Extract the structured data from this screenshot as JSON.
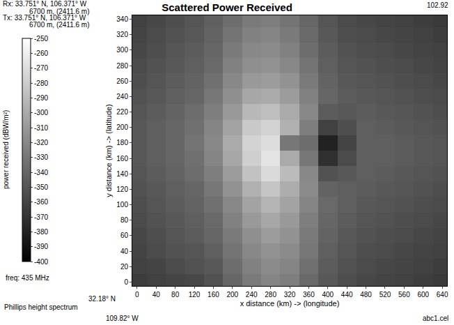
{
  "chart_data": {
    "type": "heatmap",
    "title": "Scattered Power Received",
    "x_label": "x distance (km) -> (longitude)",
    "y_label": "y distance (km) -> (latitude)",
    "annotations": [
      "Rx: 33.751° N, 106.371° W",
      "6700 m, (2411.6 m)",
      "Tx: 33.751° N, 106.371° W",
      "6700 m, (2411.6 m)",
      "102.92",
      "freq: 435 MHz",
      "Phillips height spectrum",
      "32.18° N",
      "109.82° W",
      "abc1.cel"
    ],
    "grid": false,
    "x": [
      0,
      40,
      80,
      120,
      160,
      200,
      240,
      280,
      320,
      360,
      400,
      440,
      480,
      520,
      560,
      600,
      640
    ],
    "y": [
      0,
      20,
      40,
      60,
      80,
      100,
      120,
      140,
      160,
      180,
      200,
      220,
      240,
      260,
      280,
      300,
      320,
      340
    ],
    "z": [
      [
        -365,
        -362,
        -360,
        -358,
        -352,
        -340,
        -328,
        -322,
        -326,
        -338,
        -348,
        -354,
        -358,
        -360,
        -362,
        -364,
        -366
      ],
      [
        -362,
        -360,
        -356,
        -352,
        -348,
        -336,
        -324,
        -318,
        -322,
        -334,
        -346,
        -352,
        -356,
        -358,
        -360,
        -362,
        -364
      ],
      [
        -360,
        -356,
        -352,
        -350,
        -344,
        -332,
        -320,
        -314,
        -318,
        -330,
        -344,
        -350,
        -354,
        -356,
        -358,
        -360,
        -362
      ],
      [
        -358,
        -354,
        -350,
        -346,
        -340,
        -328,
        -316,
        -308,
        -314,
        -328,
        -342,
        -348,
        -352,
        -354,
        -356,
        -358,
        -360
      ],
      [
        -356,
        -352,
        -348,
        -344,
        -338,
        -324,
        -310,
        -302,
        -310,
        -326,
        -340,
        -346,
        -350,
        -352,
        -354,
        -356,
        -358
      ],
      [
        -354,
        -350,
        -346,
        -342,
        -334,
        -320,
        -304,
        -294,
        -304,
        -322,
        -338,
        -344,
        -348,
        -350,
        -352,
        -354,
        -356
      ],
      [
        -352,
        -348,
        -344,
        -340,
        -330,
        -314,
        -296,
        -284,
        -298,
        -318,
        -342,
        -344,
        -346,
        -348,
        -350,
        -352,
        -354
      ],
      [
        -350,
        -346,
        -342,
        -336,
        -326,
        -308,
        -286,
        -272,
        -290,
        -320,
        -352,
        -348,
        -344,
        -346,
        -348,
        -350,
        -352
      ],
      [
        -348,
        -344,
        -340,
        -334,
        -322,
        -302,
        -278,
        -266,
        -300,
        -330,
        -372,
        -356,
        -344,
        -344,
        -346,
        -348,
        -350
      ],
      [
        -348,
        -344,
        -340,
        -332,
        -320,
        -300,
        -276,
        -270,
        -330,
        -336,
        -380,
        -360,
        -344,
        -344,
        -346,
        -348,
        -350
      ],
      [
        -348,
        -344,
        -340,
        -334,
        -322,
        -304,
        -282,
        -276,
        -296,
        -326,
        -362,
        -354,
        -344,
        -346,
        -348,
        -350,
        -352
      ],
      [
        -350,
        -346,
        -342,
        -336,
        -326,
        -310,
        -292,
        -288,
        -300,
        -320,
        -346,
        -348,
        -346,
        -348,
        -350,
        -352,
        -354
      ],
      [
        -352,
        -348,
        -344,
        -340,
        -330,
        -316,
        -302,
        -300,
        -308,
        -324,
        -340,
        -346,
        -348,
        -350,
        -352,
        -354,
        -356
      ],
      [
        -354,
        -350,
        -346,
        -342,
        -334,
        -320,
        -310,
        -308,
        -314,
        -328,
        -342,
        -348,
        -350,
        -352,
        -354,
        -356,
        -358
      ],
      [
        -356,
        -352,
        -348,
        -344,
        -338,
        -324,
        -316,
        -314,
        -320,
        -332,
        -344,
        -350,
        -352,
        -354,
        -356,
        -358,
        -360
      ],
      [
        -358,
        -354,
        -350,
        -346,
        -340,
        -328,
        -320,
        -318,
        -324,
        -336,
        -346,
        -352,
        -354,
        -356,
        -358,
        -360,
        -362
      ],
      [
        -360,
        -356,
        -352,
        -348,
        -342,
        -332,
        -324,
        -322,
        -328,
        -338,
        -348,
        -354,
        -356,
        -358,
        -360,
        -362,
        -364
      ],
      [
        -362,
        -358,
        -354,
        -350,
        -344,
        -336,
        -328,
        -326,
        -332,
        -340,
        -350,
        -356,
        -358,
        -360,
        -362,
        -364,
        -366
      ]
    ],
    "xlim": [
      -10,
      650
    ],
    "ylim": [
      -5,
      345
    ],
    "xticks": [
      0,
      40,
      80,
      120,
      160,
      200,
      240,
      280,
      320,
      360,
      400,
      440,
      480,
      520,
      560,
      600,
      640
    ],
    "yticks": [
      0,
      20,
      40,
      60,
      80,
      100,
      120,
      140,
      160,
      180,
      200,
      220,
      240,
      260,
      280,
      300,
      320,
      340
    ],
    "colorbar": {
      "title": "power received (dBW/m²)",
      "range": [
        -400,
        -250
      ],
      "ticks": [
        -250,
        -260,
        -270,
        -280,
        -290,
        -300,
        -310,
        -320,
        -330,
        -340,
        -350,
        -360,
        -370,
        -380,
        -390,
        -400
      ]
    }
  }
}
